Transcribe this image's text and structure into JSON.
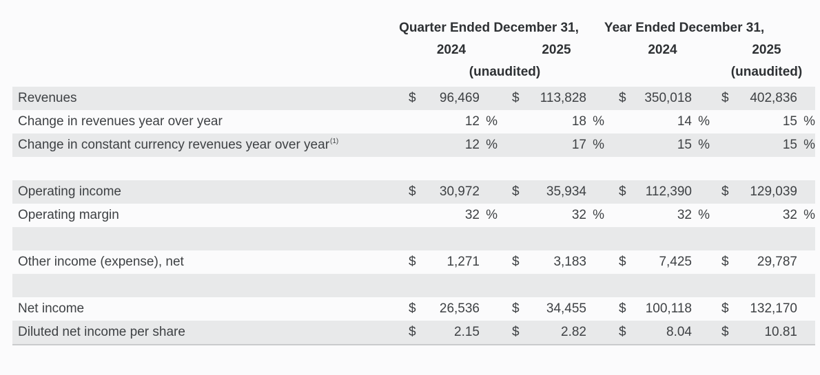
{
  "table": {
    "header": {
      "quarter_title": "Quarter Ended December 31,",
      "year_title": "Year Ended December 31,",
      "quarter_year_1": "2024",
      "quarter_year_2": "2025",
      "annual_year_1": "2024",
      "annual_year_2": "2025",
      "quarter_unaudited": "(unaudited)",
      "annual_unaudited": "(unaudited)"
    },
    "currency_symbol": "$",
    "percent_symbol": "%",
    "rows": [
      {
        "label": "Revenues",
        "type": "money",
        "shaded": true,
        "values": [
          "96,469",
          "113,828",
          "350,018",
          "402,836"
        ]
      },
      {
        "label": "Change in revenues year over year",
        "type": "percent",
        "shaded": false,
        "values": [
          "12",
          "18",
          "14",
          "15"
        ]
      },
      {
        "label": "Change in constant currency revenues year over year",
        "footnote_marker": "(1)",
        "type": "percent",
        "shaded": true,
        "values": [
          "12",
          "17",
          "15",
          "15"
        ]
      },
      {
        "type": "blank",
        "shaded": false
      },
      {
        "label": "Operating income",
        "type": "money",
        "shaded": true,
        "values": [
          "30,972",
          "35,934",
          "112,390",
          "129,039"
        ]
      },
      {
        "label": "Operating margin",
        "type": "percent",
        "shaded": false,
        "values": [
          "32",
          "32",
          "32",
          "32"
        ]
      },
      {
        "type": "blank",
        "shaded": true
      },
      {
        "label": "Other income (expense), net",
        "type": "money",
        "shaded": false,
        "values": [
          "1,271",
          "3,183",
          "7,425",
          "29,787"
        ]
      },
      {
        "type": "blank",
        "shaded": true
      },
      {
        "label": "Net income",
        "type": "money",
        "shaded": false,
        "values": [
          "26,536",
          "34,455",
          "100,118",
          "132,170"
        ]
      },
      {
        "label": "Diluted net income per share",
        "type": "money",
        "shaded": true,
        "values": [
          "2.15",
          "2.82",
          "8.04",
          "10.81"
        ]
      }
    ]
  },
  "colors": {
    "stripe": "#e8e9ea",
    "text": "#3e4144",
    "header-text": "#2e3134",
    "background": "#fbfbfc",
    "bottom-edge": "#c9cacc"
  }
}
